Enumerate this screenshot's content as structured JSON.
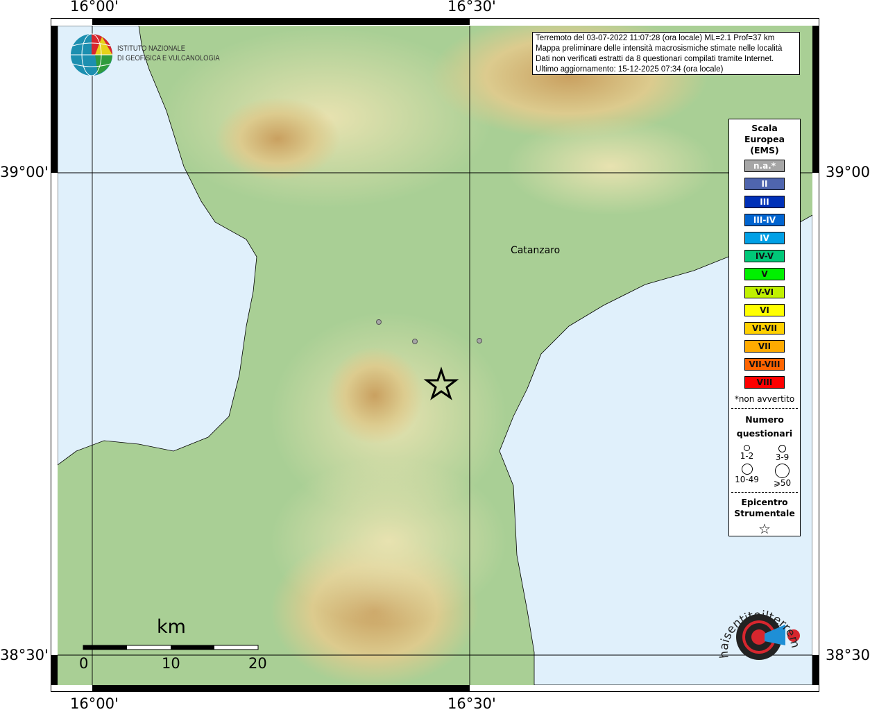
{
  "axes": {
    "top": [
      "16°00'",
      "16°30'"
    ],
    "bottom": [
      "16°00'",
      "16°30'"
    ],
    "left": [
      "39°00'",
      "38°30'"
    ],
    "right": [
      "39°00'",
      "38°30'"
    ]
  },
  "logo_ingv": {
    "text": [
      "ISTITUTO NAZIONALE",
      "DI GEOFISICA E VULCANOLOGIA"
    ]
  },
  "logo_hsit": {
    "text": "www.haisentitoilterremoto.it"
  },
  "info": {
    "lines": [
      "Terremoto del 03-07-2022 11:07:28 (ora locale) ML=2.1 Prof=37 km",
      "Mappa preliminare delle intensità macrosismiche stimate nelle località",
      "Dati non verificati estratti da 8 questionari compilati tramite Internet.",
      "Ultimo aggiornamento: 15-12-2025 07:34 (ora locale)"
    ]
  },
  "places": [
    {
      "name": "Catanzaro"
    }
  ],
  "observations": [
    {
      "intensity": "n.a.*",
      "responses": "1-2"
    },
    {
      "intensity": "n.a.*",
      "responses": "1-2"
    },
    {
      "intensity": "n.a.*",
      "responses": "1-2"
    }
  ],
  "epicenter": {
    "icon": "star-icon"
  },
  "legend": {
    "title": [
      "Scala",
      "Europea",
      "(EMS)"
    ],
    "scale": [
      {
        "label": "n.a.*",
        "color": "#a6a6a6"
      },
      {
        "label": "II",
        "color": "#4f65ae"
      },
      {
        "label": "III",
        "color": "#0030b8"
      },
      {
        "label": "III-IV",
        "color": "#0064d0"
      },
      {
        "label": "IV",
        "color": "#00a0e6"
      },
      {
        "label": "IV-V",
        "color": "#00c878"
      },
      {
        "label": "V",
        "color": "#00f000"
      },
      {
        "label": "V-VI",
        "color": "#c0f000"
      },
      {
        "label": "VI",
        "color": "#ffff00"
      },
      {
        "label": "VI-VII",
        "color": "#ffd000"
      },
      {
        "label": "VII",
        "color": "#ffaa00"
      },
      {
        "label": "VII-VIII",
        "color": "#ff6400"
      },
      {
        "label": "VIII",
        "color": "#ff0000"
      }
    ],
    "note": "*non avvertito",
    "count_title": [
      "Numero",
      "questionari"
    ],
    "counts": [
      "1-2",
      "3-9",
      "10-49",
      "⩾50"
    ],
    "epi_title": [
      "Epicentro",
      "Strumentale"
    ]
  },
  "scalebar": {
    "unit": "km",
    "labels": [
      "0",
      "10",
      "20"
    ]
  }
}
